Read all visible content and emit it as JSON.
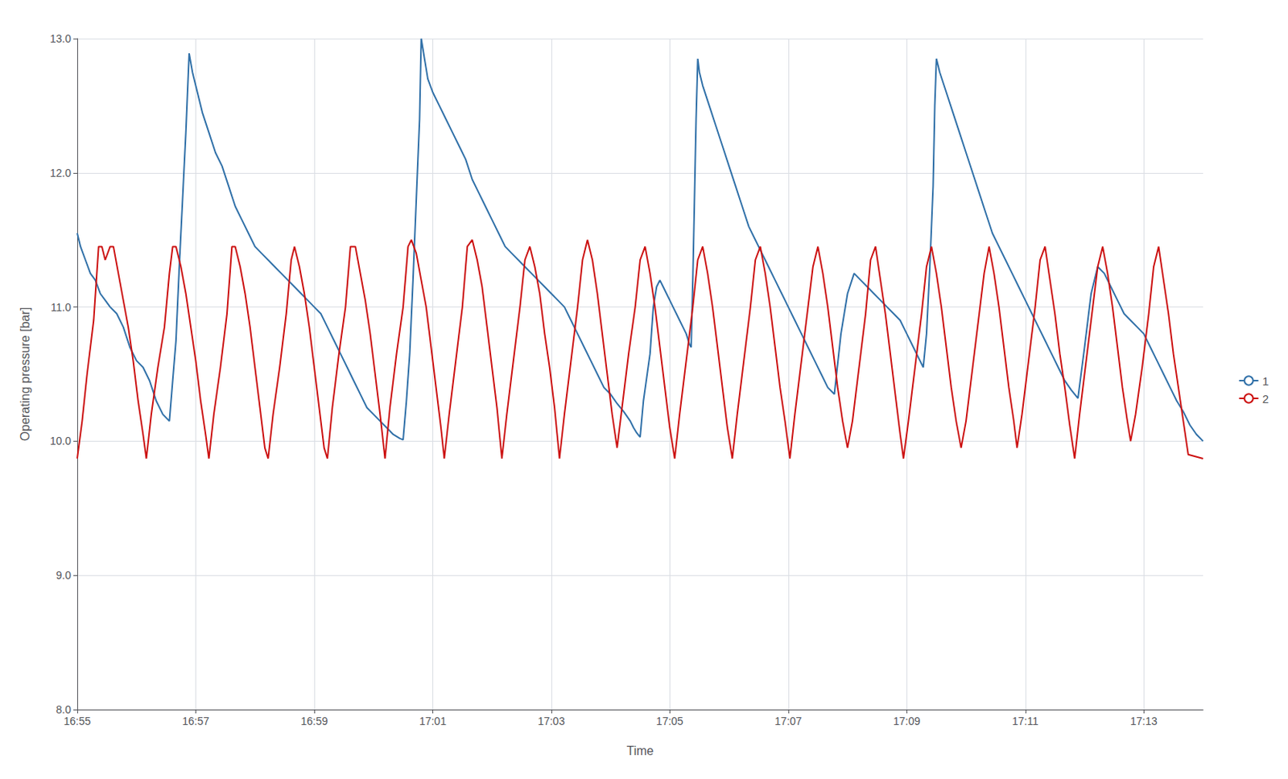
{
  "chart_data": {
    "type": "line",
    "xlabel": "Time",
    "ylabel": "Operating pressure [bar]",
    "xlim": [
      0,
      34.2
    ],
    "xticks": [
      {
        "value": 0,
        "label": "16:55"
      },
      {
        "value": 3.6,
        "label": "16:57"
      },
      {
        "value": 7.2,
        "label": "16:59"
      },
      {
        "value": 10.8,
        "label": "17:01"
      },
      {
        "value": 14.4,
        "label": "17:03"
      },
      {
        "value": 18,
        "label": "17:05"
      },
      {
        "value": 21.6,
        "label": "17:07"
      },
      {
        "value": 25.2,
        "label": "17:09"
      },
      {
        "value": 28.8,
        "label": "17:11"
      },
      {
        "value": 32.4,
        "label": "17:13"
      }
    ],
    "ylim": [
      8.0,
      13.0
    ],
    "yticks": [
      {
        "value": 8.0,
        "label": "8.0"
      },
      {
        "value": 9.0,
        "label": "9.0"
      },
      {
        "value": 10.0,
        "label": "10.0"
      },
      {
        "value": 11.0,
        "label": "11.0"
      },
      {
        "value": 12.0,
        "label": "12.0"
      },
      {
        "value": 13.0,
        "label": "13.0"
      }
    ],
    "grid": true,
    "legend": "right",
    "series": [
      {
        "name": "1",
        "color": "#3070a8",
        "x": [
          0.0,
          0.1,
          0.25,
          0.4,
          0.55,
          0.7,
          0.85,
          1.0,
          1.2,
          1.4,
          1.6,
          1.8,
          2.0,
          2.2,
          2.4,
          2.6,
          2.8,
          3.0,
          3.1,
          3.2,
          3.3,
          3.4,
          3.5,
          3.65,
          3.8,
          4.0,
          4.2,
          4.4,
          4.6,
          4.8,
          5.0,
          5.2,
          5.4,
          5.6,
          5.8,
          6.0,
          6.2,
          6.4,
          6.6,
          6.8,
          7.0,
          7.2,
          7.4,
          7.6,
          7.8,
          8.0,
          8.2,
          8.4,
          8.6,
          8.8,
          9.0,
          9.2,
          9.4,
          9.6,
          9.8,
          9.9,
          10.0,
          10.1,
          10.2,
          10.3,
          10.4,
          10.45,
          10.55,
          10.65,
          10.8,
          11.0,
          11.2,
          11.4,
          11.6,
          11.8,
          12.0,
          12.2,
          12.4,
          12.6,
          12.8,
          13.0,
          13.2,
          13.4,
          13.6,
          13.8,
          14.0,
          14.2,
          14.4,
          14.6,
          14.8,
          15.0,
          15.2,
          15.4,
          15.6,
          15.8,
          16.0,
          16.2,
          16.4,
          16.6,
          16.8,
          16.9,
          17.0,
          17.1,
          17.2,
          17.4,
          17.5,
          17.6,
          17.7,
          17.8,
          17.9,
          18.0,
          18.1,
          18.2,
          18.3,
          18.4,
          18.5,
          18.6,
          18.65,
          18.7,
          18.75,
          18.8,
          18.85,
          18.9,
          19.0,
          19.2,
          19.4,
          19.6,
          19.8,
          20.0,
          20.2,
          20.4,
          20.6,
          20.8,
          21.0,
          21.2,
          21.4,
          21.6,
          21.8,
          22.0,
          22.2,
          22.4,
          22.6,
          22.8,
          23.0,
          23.2,
          23.4,
          23.6,
          23.8,
          24.0,
          24.2,
          24.4,
          24.6,
          24.8,
          25.0,
          25.2,
          25.4,
          25.6,
          25.7,
          25.8,
          25.9,
          26.0,
          26.05,
          26.1,
          26.2,
          26.4,
          26.6,
          26.8,
          27.0,
          27.2,
          27.4,
          27.6,
          27.8,
          28.0,
          28.2,
          28.4,
          28.6,
          28.8,
          29.0,
          29.2,
          29.4,
          29.6,
          29.8,
          30.0,
          30.2,
          30.4,
          30.6,
          30.8,
          31.0,
          31.2,
          31.4,
          31.6,
          31.8,
          32.0,
          32.2,
          32.4,
          32.6,
          32.8,
          33.0,
          33.2,
          33.4,
          33.6,
          33.8,
          34.0,
          34.2
        ],
        "values": [
          11.55,
          11.45,
          11.35,
          11.25,
          11.2,
          11.1,
          11.05,
          11.0,
          10.95,
          10.85,
          10.7,
          10.6,
          10.55,
          10.45,
          10.3,
          10.2,
          10.15,
          10.75,
          11.3,
          11.8,
          12.3,
          12.89,
          12.75,
          12.6,
          12.45,
          12.3,
          12.15,
          12.05,
          11.9,
          11.75,
          11.65,
          11.55,
          11.45,
          11.4,
          11.35,
          11.3,
          11.25,
          11.2,
          11.15,
          11.1,
          11.05,
          11.0,
          10.95,
          10.85,
          10.75,
          10.65,
          10.55,
          10.45,
          10.35,
          10.25,
          10.2,
          10.15,
          10.1,
          10.05,
          10.02,
          10.01,
          10.3,
          10.65,
          11.2,
          11.8,
          12.4,
          13.0,
          12.85,
          12.7,
          12.6,
          12.5,
          12.4,
          12.3,
          12.2,
          12.1,
          11.95,
          11.85,
          11.75,
          11.65,
          11.55,
          11.45,
          11.4,
          11.35,
          11.3,
          11.25,
          11.2,
          11.15,
          11.1,
          11.05,
          11.0,
          10.9,
          10.8,
          10.7,
          10.6,
          10.5,
          10.4,
          10.35,
          10.28,
          10.22,
          10.15,
          10.1,
          10.06,
          10.03,
          10.3,
          10.65,
          11.0,
          11.15,
          11.2,
          11.15,
          11.1,
          11.05,
          11.0,
          10.95,
          10.9,
          10.85,
          10.8,
          10.72,
          10.7,
          11.2,
          11.8,
          12.4,
          12.85,
          12.75,
          12.65,
          12.5,
          12.35,
          12.2,
          12.05,
          11.9,
          11.75,
          11.6,
          11.5,
          11.4,
          11.3,
          11.2,
          11.1,
          11.0,
          10.9,
          10.8,
          10.7,
          10.6,
          10.5,
          10.4,
          10.35,
          10.8,
          11.1,
          11.25,
          11.2,
          11.15,
          11.1,
          11.05,
          11.0,
          10.95,
          10.9,
          10.8,
          10.7,
          10.6,
          10.55,
          10.8,
          11.3,
          11.9,
          12.5,
          12.85,
          12.75,
          12.6,
          12.45,
          12.3,
          12.15,
          12.0,
          11.85,
          11.7,
          11.55,
          11.45,
          11.35,
          11.25,
          11.15,
          11.05,
          10.95,
          10.85,
          10.75,
          10.65,
          10.55,
          10.45,
          10.38,
          10.32,
          10.7,
          11.1,
          11.3,
          11.25,
          11.15,
          11.05,
          10.95,
          10.9,
          10.85,
          10.8,
          10.7,
          10.6,
          10.5,
          10.4,
          10.3,
          10.22,
          10.12,
          10.05,
          10.0
        ]
      },
      {
        "name": "2",
        "color": "#cc1111",
        "x": [
          0.0,
          0.15,
          0.3,
          0.5,
          0.65,
          0.75,
          0.85,
          1.0,
          1.1,
          1.25,
          1.4,
          1.55,
          1.7,
          1.85,
          2.0,
          2.1,
          2.25,
          2.45,
          2.65,
          2.8,
          2.9,
          3.0,
          3.15,
          3.3,
          3.45,
          3.6,
          3.75,
          3.9,
          4.0,
          4.15,
          4.35,
          4.55,
          4.7,
          4.8,
          4.95,
          5.1,
          5.25,
          5.4,
          5.55,
          5.7,
          5.8,
          5.95,
          6.15,
          6.35,
          6.5,
          6.6,
          6.75,
          6.9,
          7.05,
          7.2,
          7.35,
          7.5,
          7.6,
          7.75,
          7.95,
          8.15,
          8.3,
          8.45,
          8.6,
          8.75,
          8.9,
          9.05,
          9.2,
          9.35,
          9.5,
          9.7,
          9.9,
          10.05,
          10.15,
          10.3,
          10.45,
          10.6,
          10.75,
          10.9,
          11.05,
          11.15,
          11.3,
          11.5,
          11.7,
          11.85,
          12.0,
          12.15,
          12.3,
          12.45,
          12.6,
          12.75,
          12.9,
          13.05,
          13.25,
          13.45,
          13.6,
          13.75,
          13.9,
          14.05,
          14.2,
          14.35,
          14.5,
          14.65,
          14.8,
          15.0,
          15.2,
          15.35,
          15.5,
          15.65,
          15.8,
          15.95,
          16.1,
          16.25,
          16.4,
          16.55,
          16.75,
          16.95,
          17.1,
          17.25,
          17.4,
          17.55,
          17.7,
          17.85,
          18.0,
          18.15,
          18.3,
          18.5,
          18.7,
          18.85,
          19.0,
          19.15,
          19.3,
          19.45,
          19.6,
          19.75,
          19.9,
          20.05,
          20.25,
          20.45,
          20.6,
          20.75,
          20.9,
          21.05,
          21.2,
          21.35,
          21.5,
          21.65,
          21.8,
          22.0,
          22.2,
          22.35,
          22.5,
          22.65,
          22.8,
          22.95,
          23.1,
          23.25,
          23.4,
          23.55,
          23.75,
          23.95,
          24.1,
          24.25,
          24.4,
          24.55,
          24.7,
          24.85,
          25.0,
          25.1,
          25.25,
          25.45,
          25.65,
          25.8,
          25.95,
          26.1,
          26.25,
          26.4,
          26.55,
          26.7,
          26.85,
          27.0,
          27.2,
          27.4,
          27.55,
          27.7,
          27.85,
          28.0,
          28.15,
          28.3,
          28.45,
          28.55,
          28.7,
          28.9,
          29.1,
          29.25,
          29.4,
          29.55,
          29.7,
          29.85,
          30.0,
          30.15,
          30.3,
          30.45,
          30.65,
          30.85,
          31.0,
          31.15,
          31.3,
          31.45,
          31.6,
          31.75,
          31.9,
          32.0,
          32.15,
          32.35,
          32.55,
          32.7,
          32.85,
          33.0,
          33.15,
          33.3,
          33.45,
          33.6,
          33.75,
          34.2
        ],
        "values": [
          9.87,
          10.15,
          10.5,
          10.9,
          11.45,
          11.45,
          11.35,
          11.45,
          11.45,
          11.25,
          11.05,
          10.85,
          10.6,
          10.3,
          10.05,
          9.87,
          10.2,
          10.55,
          10.85,
          11.25,
          11.45,
          11.45,
          11.3,
          11.1,
          10.85,
          10.6,
          10.3,
          10.05,
          9.87,
          10.2,
          10.55,
          10.95,
          11.45,
          11.45,
          11.3,
          11.1,
          10.85,
          10.55,
          10.25,
          9.95,
          9.87,
          10.2,
          10.55,
          10.95,
          11.35,
          11.45,
          11.3,
          11.1,
          10.85,
          10.55,
          10.25,
          9.95,
          9.87,
          10.25,
          10.65,
          11.0,
          11.45,
          11.45,
          11.25,
          11.05,
          10.8,
          10.5,
          10.2,
          9.87,
          10.25,
          10.65,
          11.0,
          11.45,
          11.5,
          11.4,
          11.2,
          11.0,
          10.7,
          10.4,
          10.1,
          9.87,
          10.2,
          10.6,
          11.0,
          11.45,
          11.5,
          11.35,
          11.15,
          10.85,
          10.55,
          10.25,
          9.87,
          10.2,
          10.6,
          11.0,
          11.35,
          11.45,
          11.3,
          11.1,
          10.8,
          10.55,
          10.25,
          9.87,
          10.2,
          10.6,
          11.0,
          11.35,
          11.5,
          11.35,
          11.1,
          10.8,
          10.5,
          10.2,
          9.95,
          10.25,
          10.65,
          11.0,
          11.35,
          11.45,
          11.25,
          11.0,
          10.7,
          10.4,
          10.1,
          9.87,
          10.2,
          10.6,
          11.0,
          11.35,
          11.45,
          11.25,
          11.0,
          10.7,
          10.4,
          10.1,
          9.87,
          10.2,
          10.6,
          11.0,
          11.35,
          11.45,
          11.25,
          11.0,
          10.7,
          10.4,
          10.15,
          9.87,
          10.2,
          10.6,
          11.0,
          11.3,
          11.45,
          11.25,
          11.0,
          10.7,
          10.4,
          10.15,
          9.95,
          10.15,
          10.55,
          10.95,
          11.35,
          11.45,
          11.2,
          10.95,
          10.65,
          10.35,
          10.05,
          9.87,
          10.15,
          10.55,
          10.95,
          11.3,
          11.45,
          11.25,
          11.0,
          10.7,
          10.4,
          10.15,
          9.95,
          10.15,
          10.55,
          10.95,
          11.25,
          11.45,
          11.25,
          11.0,
          10.7,
          10.4,
          10.15,
          9.95,
          10.2,
          10.6,
          11.0,
          11.35,
          11.45,
          11.2,
          10.95,
          10.65,
          10.4,
          10.12,
          9.87,
          10.2,
          10.6,
          11.0,
          11.3,
          11.45,
          11.25,
          11.0,
          10.7,
          10.4,
          10.15,
          10.0,
          10.2,
          10.55,
          10.95,
          11.3,
          11.45,
          11.2,
          10.95,
          10.65,
          10.4,
          10.15,
          9.9,
          9.87
        ]
      }
    ]
  }
}
